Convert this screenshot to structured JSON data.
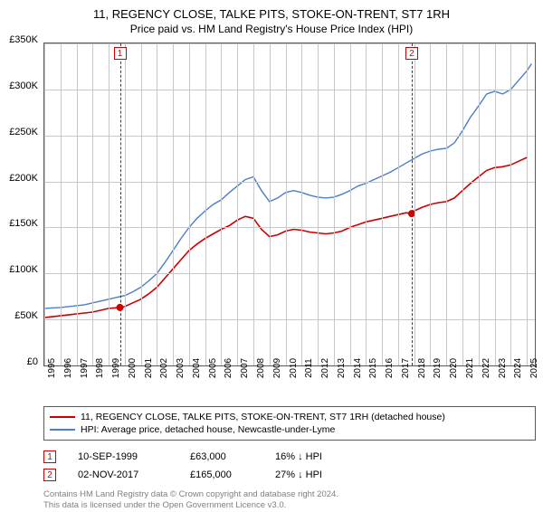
{
  "title": {
    "main": "11, REGENCY CLOSE, TALKE PITS, STOKE-ON-TRENT, ST7 1RH",
    "sub": "Price paid vs. HM Land Registry's House Price Index (HPI)",
    "main_fontsize": 13,
    "sub_fontsize": 12
  },
  "chart": {
    "type": "line",
    "background_color": "#ffffff",
    "border_color": "#5a5a5a",
    "grid_color": "#c8c8c8",
    "ylim": [
      0,
      350000
    ],
    "ytick_step": 50000,
    "yticks": [
      "£0",
      "£50K",
      "£100K",
      "£150K",
      "£200K",
      "£250K",
      "£300K",
      "£350K"
    ],
    "xlim": [
      1995,
      2025.5
    ],
    "xticks": [
      1995,
      1996,
      1997,
      1998,
      1999,
      2000,
      2001,
      2002,
      2003,
      2004,
      2005,
      2006,
      2007,
      2008,
      2009,
      2010,
      2011,
      2012,
      2013,
      2014,
      2015,
      2016,
      2017,
      2018,
      2019,
      2020,
      2021,
      2022,
      2023,
      2024,
      2025
    ],
    "series": [
      {
        "name": "property",
        "color": "#cc0000",
        "line_width": 1.6,
        "points": [
          [
            1995.0,
            52000
          ],
          [
            1995.5,
            53000
          ],
          [
            1996.0,
            54000
          ],
          [
            1996.5,
            55000
          ],
          [
            1997.0,
            56000
          ],
          [
            1997.5,
            57000
          ],
          [
            1998.0,
            58000
          ],
          [
            1998.5,
            60000
          ],
          [
            1999.0,
            62000
          ],
          [
            1999.7,
            63000
          ],
          [
            2000.0,
            64000
          ],
          [
            2000.5,
            68000
          ],
          [
            2001.0,
            72000
          ],
          [
            2001.5,
            78000
          ],
          [
            2002.0,
            85000
          ],
          [
            2002.5,
            95000
          ],
          [
            2003.0,
            105000
          ],
          [
            2003.5,
            115000
          ],
          [
            2004.0,
            125000
          ],
          [
            2004.5,
            132000
          ],
          [
            2005.0,
            138000
          ],
          [
            2005.5,
            143000
          ],
          [
            2006.0,
            148000
          ],
          [
            2006.5,
            152000
          ],
          [
            2007.0,
            158000
          ],
          [
            2007.5,
            162000
          ],
          [
            2008.0,
            160000
          ],
          [
            2008.5,
            148000
          ],
          [
            2009.0,
            140000
          ],
          [
            2009.5,
            142000
          ],
          [
            2010.0,
            146000
          ],
          [
            2010.5,
            148000
          ],
          [
            2011.0,
            147000
          ],
          [
            2011.5,
            145000
          ],
          [
            2012.0,
            144000
          ],
          [
            2012.5,
            143000
          ],
          [
            2013.0,
            144000
          ],
          [
            2013.5,
            146000
          ],
          [
            2014.0,
            150000
          ],
          [
            2014.5,
            153000
          ],
          [
            2015.0,
            156000
          ],
          [
            2015.5,
            158000
          ],
          [
            2016.0,
            160000
          ],
          [
            2016.5,
            162000
          ],
          [
            2017.0,
            164000
          ],
          [
            2017.5,
            166000
          ],
          [
            2017.84,
            165000
          ],
          [
            2018.0,
            168000
          ],
          [
            2018.5,
            172000
          ],
          [
            2019.0,
            175000
          ],
          [
            2019.5,
            177000
          ],
          [
            2020.0,
            178000
          ],
          [
            2020.5,
            182000
          ],
          [
            2021.0,
            190000
          ],
          [
            2021.5,
            198000
          ],
          [
            2022.0,
            205000
          ],
          [
            2022.5,
            212000
          ],
          [
            2023.0,
            215000
          ],
          [
            2023.5,
            216000
          ],
          [
            2024.0,
            218000
          ],
          [
            2024.5,
            222000
          ],
          [
            2025.0,
            226000
          ]
        ],
        "markers": [
          {
            "x": 1999.7,
            "y": 63000,
            "size": 4
          },
          {
            "x": 2017.84,
            "y": 165000,
            "size": 4
          }
        ]
      },
      {
        "name": "hpi",
        "color": "#4a7ec8",
        "line_width": 1.4,
        "points": [
          [
            1995.0,
            62000
          ],
          [
            1995.5,
            62500
          ],
          [
            1996.0,
            63000
          ],
          [
            1996.5,
            64000
          ],
          [
            1997.0,
            65000
          ],
          [
            1997.5,
            66000
          ],
          [
            1998.0,
            68000
          ],
          [
            1998.5,
            70000
          ],
          [
            1999.0,
            72000
          ],
          [
            1999.5,
            74000
          ],
          [
            2000.0,
            76000
          ],
          [
            2000.5,
            80000
          ],
          [
            2001.0,
            85000
          ],
          [
            2001.5,
            92000
          ],
          [
            2002.0,
            100000
          ],
          [
            2002.5,
            112000
          ],
          [
            2003.0,
            125000
          ],
          [
            2003.5,
            138000
          ],
          [
            2004.0,
            150000
          ],
          [
            2004.5,
            160000
          ],
          [
            2005.0,
            168000
          ],
          [
            2005.5,
            175000
          ],
          [
            2006.0,
            180000
          ],
          [
            2006.5,
            188000
          ],
          [
            2007.0,
            195000
          ],
          [
            2007.5,
            202000
          ],
          [
            2008.0,
            205000
          ],
          [
            2008.5,
            190000
          ],
          [
            2009.0,
            178000
          ],
          [
            2009.5,
            182000
          ],
          [
            2010.0,
            188000
          ],
          [
            2010.5,
            190000
          ],
          [
            2011.0,
            188000
          ],
          [
            2011.5,
            185000
          ],
          [
            2012.0,
            183000
          ],
          [
            2012.5,
            182000
          ],
          [
            2013.0,
            183000
          ],
          [
            2013.5,
            186000
          ],
          [
            2014.0,
            190000
          ],
          [
            2014.5,
            195000
          ],
          [
            2015.0,
            198000
          ],
          [
            2015.5,
            202000
          ],
          [
            2016.0,
            206000
          ],
          [
            2016.5,
            210000
          ],
          [
            2017.0,
            215000
          ],
          [
            2017.5,
            220000
          ],
          [
            2018.0,
            225000
          ],
          [
            2018.5,
            230000
          ],
          [
            2019.0,
            233000
          ],
          [
            2019.5,
            235000
          ],
          [
            2020.0,
            236000
          ],
          [
            2020.5,
            242000
          ],
          [
            2021.0,
            255000
          ],
          [
            2021.5,
            270000
          ],
          [
            2022.0,
            282000
          ],
          [
            2022.5,
            295000
          ],
          [
            2023.0,
            298000
          ],
          [
            2023.5,
            295000
          ],
          [
            2024.0,
            300000
          ],
          [
            2024.5,
            310000
          ],
          [
            2025.0,
            320000
          ],
          [
            2025.3,
            328000
          ]
        ]
      }
    ],
    "vertical_markers": [
      {
        "label": "1",
        "x": 1999.7,
        "color": "#cc0000"
      },
      {
        "label": "2",
        "x": 2017.84,
        "color": "#cc0000"
      }
    ]
  },
  "legend": {
    "items": [
      {
        "color": "#cc0000",
        "label": "11, REGENCY CLOSE, TALKE PITS, STOKE-ON-TRENT, ST7 1RH (detached house)"
      },
      {
        "color": "#4a7ec8",
        "label": "HPI: Average price, detached house, Newcastle-under-Lyme"
      }
    ]
  },
  "annotations": [
    {
      "num": "1",
      "date": "10-SEP-1999",
      "price": "£63,000",
      "pct": "16% ↓ HPI"
    },
    {
      "num": "2",
      "date": "02-NOV-2017",
      "price": "£165,000",
      "pct": "27% ↓ HPI"
    }
  ],
  "footer": {
    "line1": "Contains HM Land Registry data © Crown copyright and database right 2024.",
    "line2": "This data is licensed under the Open Government Licence v3.0.",
    "color": "#808080"
  }
}
